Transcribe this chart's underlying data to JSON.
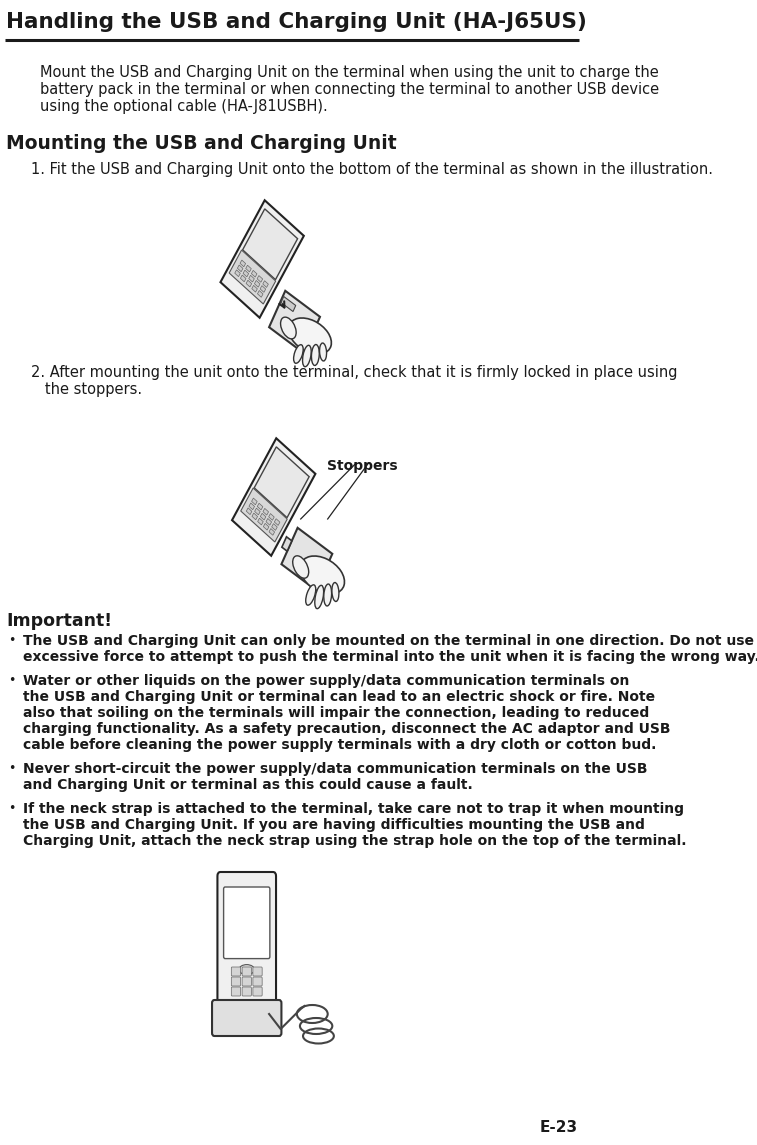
{
  "bg_color": "#ffffff",
  "text_color": "#1a1a1a",
  "title": "Handling the USB and Charging Unit (HA-J65US)",
  "title_fontsize": 15.5,
  "header_line_color": "#1a1a1a",
  "section_heading": "Mounting the USB and Charging Unit",
  "section_heading_fontsize": 13.5,
  "intro_text_lines": [
    "Mount the USB and Charging Unit on the terminal when using the unit to charge the",
    "battery pack in the terminal or when connecting the terminal to another USB device",
    "using the optional cable (HA-J81USBH)."
  ],
  "intro_fontsize": 10.5,
  "step1_text": "1. Fit the USB and Charging Unit onto the bottom of the terminal as shown in the illustration.",
  "step1_fontsize": 10.5,
  "step2_text_lines": [
    "2. After mounting the unit onto the terminal, check that it is firmly locked in place using",
    "   the stoppers."
  ],
  "step2_fontsize": 10.5,
  "stoppers_label": "Stoppers",
  "important_heading": "Important!",
  "important_heading_fontsize": 12.5,
  "bullet_items": [
    [
      "The USB and Charging Unit can only be mounted on the terminal in one direction. Do not use",
      "excessive force to attempt to push the terminal into the unit when it is facing the wrong way."
    ],
    [
      "Water or other liquids on the power supply/data communication terminals on",
      "the USB and Charging Unit or terminal can lead to an electric shock or fire. Note",
      "also that soiling on the terminals will impair the connection, leading to reduced",
      "charging functionality. As a safety precaution, disconnect the AC adaptor and USB",
      "cable before cleaning the power supply terminals with a dry cloth or cotton bud."
    ],
    [
      "Never short-circuit the power supply/data communication terminals on the USB",
      "and Charging Unit or terminal as this could cause a fault."
    ],
    [
      "If the neck strap is attached to the terminal, take care not to trap it when mounting",
      "the USB and Charging Unit. If you are having difficulties mounting the USB and",
      "Charging Unit, attach the neck strap using the strap hole on the top of the terminal."
    ]
  ],
  "bullet_fontsize": 10.0,
  "page_number": "E-23",
  "page_number_fontsize": 11
}
